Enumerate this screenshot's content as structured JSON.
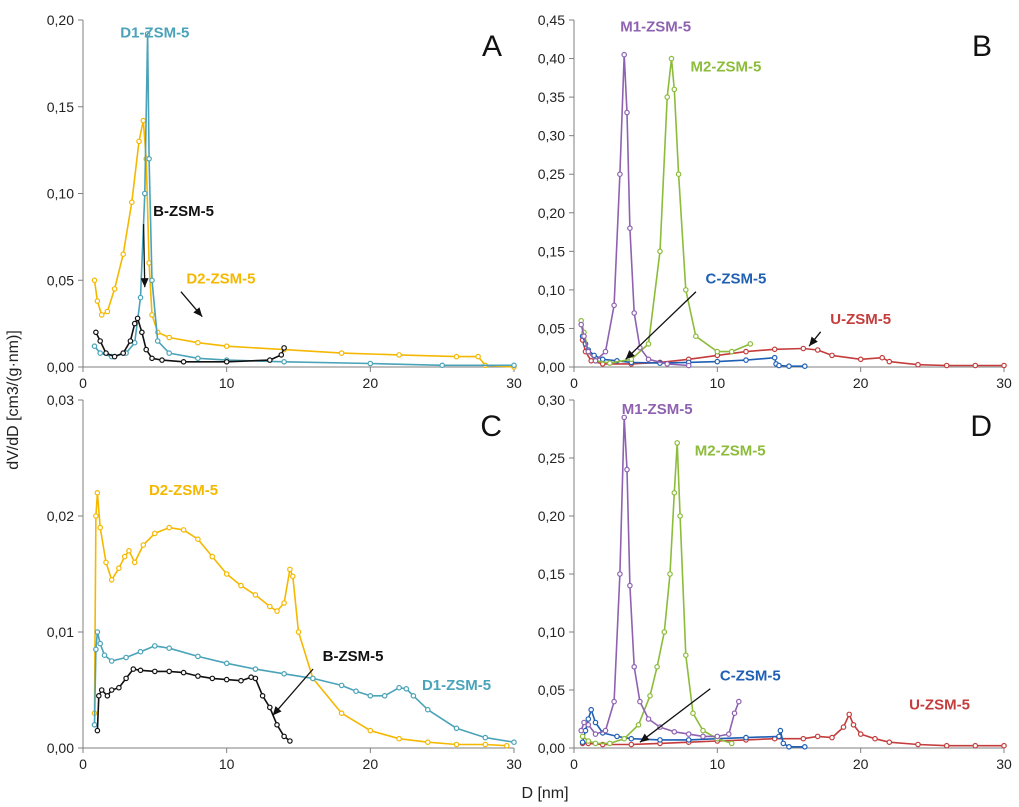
{
  "figure": {
    "ylabel": "dV/dD [cm3/(g·nm)]",
    "xlabel": "D [nm]"
  },
  "colors": {
    "D1-ZSM-5": "#4aa3b8",
    "D2-ZSM-5": "#f5b800",
    "B-ZSM-5": "#111111",
    "M1-ZSM-5": "#8e62b0",
    "M2-ZSM-5": "#8cbc3a",
    "C-ZSM-5": "#1f5fb4",
    "U-ZSM-5": "#c43c3c"
  },
  "chart_data": [
    {
      "panel": "A",
      "type": "line",
      "xlim": [
        0,
        30
      ],
      "ylim": [
        0,
        0.2
      ],
      "xticks": [
        "0",
        "10",
        "20",
        "30"
      ],
      "yticks": [
        "0,00",
        "0,05",
        "0,10",
        "0,15",
        "0,20"
      ],
      "series": [
        {
          "name": "D2-ZSM-5",
          "x": [
            0.8,
            1.0,
            1.3,
            1.7,
            2.2,
            2.8,
            3.4,
            3.9,
            4.2,
            4.4,
            4.6,
            4.8,
            5.2,
            6,
            8,
            10,
            14,
            18,
            22,
            26,
            27.5,
            28,
            30
          ],
          "y": [
            0.05,
            0.038,
            0.03,
            0.032,
            0.045,
            0.065,
            0.095,
            0.13,
            0.142,
            0.12,
            0.06,
            0.03,
            0.02,
            0.017,
            0.014,
            0.012,
            0.01,
            0.008,
            0.007,
            0.006,
            0.006,
            0.001,
            0.0
          ]
        },
        {
          "name": "D1-ZSM-5",
          "x": [
            0.8,
            1.2,
            2,
            3,
            3.6,
            4.0,
            4.3,
            4.5,
            4.6,
            4.8,
            5.2,
            6,
            8,
            10,
            14,
            20,
            25,
            30
          ],
          "y": [
            0.012,
            0.008,
            0.006,
            0.008,
            0.014,
            0.04,
            0.1,
            0.192,
            0.12,
            0.05,
            0.015,
            0.008,
            0.005,
            0.004,
            0.003,
            0.002,
            0.001,
            0.001
          ]
        },
        {
          "name": "B-ZSM-5",
          "x": [
            0.9,
            1.2,
            1.6,
            2.2,
            2.8,
            3.3,
            3.6,
            3.8,
            4.1,
            4.4,
            4.8,
            5.5,
            7,
            10,
            13,
            13.8,
            14.0
          ],
          "y": [
            0.02,
            0.015,
            0.008,
            0.006,
            0.008,
            0.015,
            0.025,
            0.028,
            0.02,
            0.01,
            0.005,
            0.004,
            0.003,
            0.003,
            0.004,
            0.007,
            0.011
          ]
        }
      ],
      "annotations": [
        {
          "text": "D1-ZSM-5",
          "series": "D1-ZSM-5",
          "x": 5,
          "y": 0.19
        },
        {
          "text": "D2-ZSM-5",
          "series": "D2-ZSM-5",
          "x": 9.6,
          "y": 0.048,
          "arrow_to": [
            8.3,
            0.029
          ]
        },
        {
          "text": "B-ZSM-5",
          "series": "B-ZSM-5",
          "x": 7,
          "y": 0.087,
          "arrow_to": [
            4.3,
            0.046
          ]
        }
      ]
    },
    {
      "panel": "B",
      "type": "line",
      "xlim": [
        0,
        30
      ],
      "ylim": [
        0,
        0.45
      ],
      "xticks": [
        "0",
        "10",
        "20",
        "30"
      ],
      "yticks": [
        "0,00",
        "0,05",
        "0,10",
        "0,15",
        "0,20",
        "0,25",
        "0,30",
        "0,35",
        "0,40",
        "0,45"
      ],
      "series": [
        {
          "name": "U-ZSM-5",
          "x": [
            0.6,
            0.8,
            1.2,
            2,
            4,
            6,
            8,
            10,
            12,
            14,
            16,
            17,
            18,
            20,
            21.5,
            22,
            24,
            26,
            28,
            30
          ],
          "y": [
            0.035,
            0.02,
            0.008,
            0.004,
            0.004,
            0.006,
            0.01,
            0.015,
            0.02,
            0.023,
            0.024,
            0.022,
            0.015,
            0.01,
            0.012,
            0.007,
            0.003,
            0.002,
            0.002,
            0.002
          ]
        },
        {
          "name": "C-ZSM-5",
          "x": [
            0.6,
            0.8,
            1.0,
            1.4,
            2.0,
            3,
            4,
            6,
            8,
            10,
            12,
            14.0,
            14.1,
            14.3,
            15,
            16.1
          ],
          "y": [
            0.04,
            0.03,
            0.022,
            0.015,
            0.01,
            0.008,
            0.006,
            0.005,
            0.006,
            0.007,
            0.009,
            0.012,
            0.004,
            0.002,
            0.001,
            0.001
          ]
        },
        {
          "name": "M2-ZSM-5",
          "x": [
            0.5,
            0.7,
            1.0,
            1.5,
            2.5,
            4,
            5.2,
            6.0,
            6.5,
            6.8,
            7.0,
            7.3,
            7.8,
            8.5,
            10,
            11,
            12.3
          ],
          "y": [
            0.06,
            0.045,
            0.02,
            0.008,
            0.005,
            0.01,
            0.03,
            0.15,
            0.35,
            0.4,
            0.36,
            0.25,
            0.1,
            0.04,
            0.02,
            0.02,
            0.03
          ]
        },
        {
          "name": "M1-ZSM-5",
          "x": [
            0.5,
            0.7,
            1.0,
            1.5,
            2.2,
            2.8,
            3.2,
            3.5,
            3.7,
            3.9,
            4.2,
            4.6,
            5.2,
            6.5,
            8
          ],
          "y": [
            0.055,
            0.04,
            0.02,
            0.008,
            0.02,
            0.08,
            0.25,
            0.405,
            0.33,
            0.18,
            0.07,
            0.025,
            0.01,
            0.004,
            0.002
          ]
        }
      ],
      "annotations": [
        {
          "text": "M1-ZSM-5",
          "series": "M1-ZSM-5",
          "x": 5.7,
          "y": 0.435
        },
        {
          "text": "M2-ZSM-5",
          "series": "M2-ZSM-5",
          "x": 10.6,
          "y": 0.383
        },
        {
          "text": "C-ZSM-5",
          "series": "C-ZSM-5",
          "x": 11.3,
          "y": 0.108,
          "arrow_to": [
            3.6,
            0.01
          ]
        },
        {
          "text": "U-ZSM-5",
          "series": "U-ZSM-5",
          "x": 20,
          "y": 0.056,
          "arrow_to": [
            16.4,
            0.027
          ]
        }
      ]
    },
    {
      "panel": "C",
      "type": "line",
      "xlim": [
        0,
        30
      ],
      "ylim": [
        0,
        0.03
      ],
      "xticks": [
        "0",
        "10",
        "20",
        "30"
      ],
      "yticks": [
        "0,00",
        "0,01",
        "0,02",
        "0,03"
      ],
      "series": [
        {
          "name": "D2-ZSM-5",
          "x": [
            0.8,
            0.9,
            1.0,
            1.2,
            1.6,
            2.0,
            2.5,
            2.9,
            3.2,
            3.6,
            4.2,
            5,
            6,
            7,
            8,
            9,
            10,
            11,
            12,
            13,
            13.5,
            14,
            14.4,
            14.6,
            15,
            16,
            18,
            20,
            22,
            24,
            26,
            28,
            29.5
          ],
          "y": [
            0.003,
            0.02,
            0.022,
            0.019,
            0.016,
            0.0145,
            0.0155,
            0.0165,
            0.017,
            0.016,
            0.0175,
            0.0185,
            0.019,
            0.0188,
            0.018,
            0.0165,
            0.015,
            0.014,
            0.0132,
            0.0122,
            0.0118,
            0.0125,
            0.0154,
            0.0148,
            0.01,
            0.006,
            0.003,
            0.0015,
            0.0008,
            0.0005,
            0.0003,
            0.0003,
            0.0002
          ]
        },
        {
          "name": "D1-ZSM-5",
          "x": [
            0.8,
            0.9,
            1.0,
            1.2,
            1.5,
            2,
            3,
            4,
            5,
            6,
            8,
            10,
            12,
            14,
            16,
            18,
            19,
            20,
            21,
            22,
            22.5,
            23,
            24,
            26,
            28,
            30
          ],
          "y": [
            0.002,
            0.0085,
            0.01,
            0.009,
            0.008,
            0.0075,
            0.0078,
            0.0083,
            0.0088,
            0.0086,
            0.0079,
            0.0073,
            0.0068,
            0.0064,
            0.006,
            0.0054,
            0.0049,
            0.0045,
            0.0045,
            0.0052,
            0.0051,
            0.0045,
            0.0033,
            0.0017,
            0.0009,
            0.0005
          ]
        },
        {
          "name": "B-ZSM-5",
          "x": [
            1.0,
            1.1,
            1.3,
            1.7,
            2,
            2.5,
            3,
            3.5,
            4,
            5,
            6,
            7,
            8,
            9,
            10,
            11,
            11.7,
            12,
            12.5,
            13,
            13.5,
            14,
            14.4
          ],
          "y": [
            0.0015,
            0.0045,
            0.005,
            0.0045,
            0.005,
            0.0052,
            0.006,
            0.0068,
            0.0067,
            0.0066,
            0.0066,
            0.0065,
            0.0062,
            0.006,
            0.0059,
            0.0058,
            0.0061,
            0.006,
            0.0045,
            0.0035,
            0.002,
            0.001,
            0.0006
          ]
        }
      ],
      "annotations": [
        {
          "text": "D2-ZSM-5",
          "series": "D2-ZSM-5",
          "x": 7,
          "y": 0.0218
        },
        {
          "text": "D1-ZSM-5",
          "series": "D1-ZSM-5",
          "x": 26,
          "y": 0.005
        },
        {
          "text": "B-ZSM-5",
          "series": "B-ZSM-5",
          "x": 18.8,
          "y": 0.0075,
          "arrow_to": [
            13.2,
            0.0028
          ]
        }
      ]
    },
    {
      "panel": "D",
      "type": "line",
      "xlim": [
        0,
        30
      ],
      "ylim": [
        0,
        0.3
      ],
      "xticks": [
        "0",
        "10",
        "20",
        "30"
      ],
      "yticks": [
        "0,00",
        "0,05",
        "0,10",
        "0,15",
        "0,20",
        "0,25",
        "0,30"
      ],
      "series": [
        {
          "name": "U-ZSM-5",
          "x": [
            0.6,
            1,
            2,
            4,
            6,
            8,
            10,
            12,
            14,
            16,
            17,
            18,
            18.8,
            19.2,
            19.5,
            20,
            21,
            22,
            24,
            26,
            28,
            30
          ],
          "y": [
            0.004,
            0.004,
            0.003,
            0.003,
            0.004,
            0.005,
            0.006,
            0.007,
            0.008,
            0.008,
            0.01,
            0.009,
            0.018,
            0.029,
            0.02,
            0.012,
            0.008,
            0.005,
            0.003,
            0.002,
            0.002,
            0.002
          ]
        },
        {
          "name": "C-ZSM-5",
          "x": [
            0.6,
            0.8,
            1.0,
            1.2,
            1.5,
            2,
            3,
            4,
            6,
            8,
            10,
            12,
            14.3,
            14.4,
            14.6,
            15,
            16.1
          ],
          "y": [
            0.005,
            0.015,
            0.025,
            0.033,
            0.022,
            0.013,
            0.01,
            0.008,
            0.007,
            0.007,
            0.008,
            0.009,
            0.01,
            0.015,
            0.004,
            0.001,
            0.001
          ]
        },
        {
          "name": "M2-ZSM-5",
          "x": [
            0.6,
            1.0,
            1.5,
            2.5,
            3.5,
            4.5,
            5.3,
            5.8,
            6.3,
            6.7,
            7.0,
            7.2,
            7.4,
            7.8,
            8.3,
            9,
            10,
            11
          ],
          "y": [
            0.01,
            0.006,
            0.004,
            0.004,
            0.008,
            0.02,
            0.045,
            0.07,
            0.1,
            0.15,
            0.22,
            0.263,
            0.2,
            0.08,
            0.03,
            0.015,
            0.008,
            0.004
          ]
        },
        {
          "name": "M1-ZSM-5",
          "x": [
            0.5,
            0.7,
            1.0,
            1.5,
            2.2,
            2.8,
            3.2,
            3.5,
            3.7,
            3.9,
            4.2,
            4.6,
            5.2,
            6,
            7,
            8,
            9,
            10,
            10.8,
            11.2,
            11.5
          ],
          "y": [
            0.015,
            0.022,
            0.02,
            0.012,
            0.015,
            0.04,
            0.15,
            0.285,
            0.24,
            0.14,
            0.07,
            0.04,
            0.025,
            0.018,
            0.014,
            0.012,
            0.01,
            0.01,
            0.012,
            0.03,
            0.04
          ]
        }
      ],
      "annotations": [
        {
          "text": "M1-ZSM-5",
          "series": "M1-ZSM-5",
          "x": 5.8,
          "y": 0.288
        },
        {
          "text": "M2-ZSM-5",
          "series": "M2-ZSM-5",
          "x": 10.9,
          "y": 0.252
        },
        {
          "text": "C-ZSM-5",
          "series": "C-ZSM-5",
          "x": 12.3,
          "y": 0.058,
          "arrow_to": [
            4.6,
            0.005
          ]
        },
        {
          "text": "U-ZSM-5",
          "series": "U-ZSM-5",
          "x": 25.5,
          "y": 0.033
        }
      ]
    }
  ]
}
